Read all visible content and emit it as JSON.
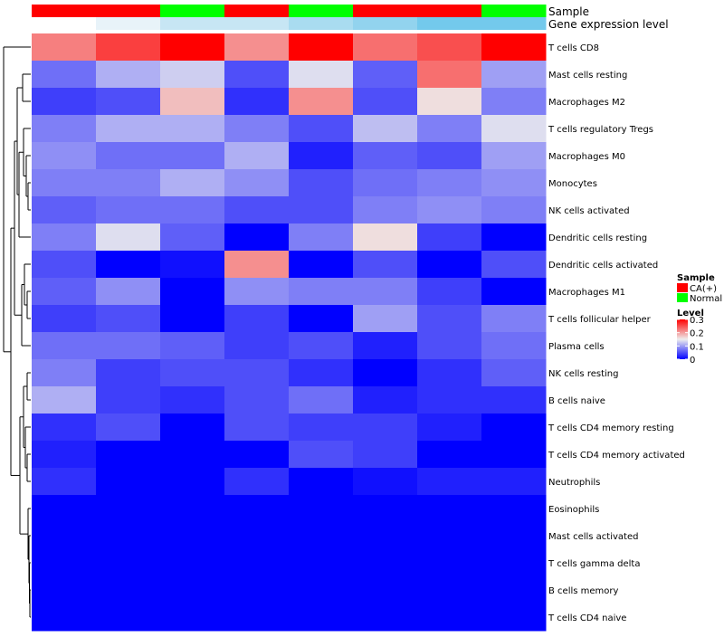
{
  "chart_data": {
    "type": "heatmap",
    "annotation_tracks": [
      "Sample",
      "Gene expression level"
    ],
    "sample_groups": [
      "CA(+)",
      "CA(+)",
      "Normal",
      "CA(+)",
      "Normal",
      "CA(+)",
      "CA(+)",
      "Normal"
    ],
    "expression_level_colors": [
      "#ffffff",
      "#e8f3f9",
      "#c7e6f4",
      "#c7e6f4",
      "#a9dcf0",
      "#92d3ee",
      "#73c9ec",
      "#73c9ec"
    ],
    "rows": [
      "T cells CD8",
      "Mast cells resting",
      "Macrophages M2",
      "T cells regulatory  Tregs",
      "Macrophages M0",
      "Monocytes",
      "NK cells activated",
      "Dendritic cells resting",
      "Dendritic cells activated",
      "Macrophages M1",
      "T cells follicular helper",
      "Plasma cells",
      "NK cells resting",
      "B cells naive",
      "T cells CD4 memory resting",
      "T cells CD4 memory activated",
      "Neutrophils",
      "Eosinophils",
      "Mast cells activated",
      "T cells gamma delta",
      "B cells memory",
      "T cells CD4 naive"
    ],
    "values": [
      [
        0.22,
        0.26,
        0.3,
        0.21,
        0.3,
        0.23,
        0.25,
        0.3
      ],
      [
        0.07,
        0.11,
        0.13,
        0.05,
        0.14,
        0.06,
        0.23,
        0.1
      ],
      [
        0.04,
        0.05,
        0.18,
        0.03,
        0.21,
        0.05,
        0.16,
        0.08
      ],
      [
        0.08,
        0.11,
        0.11,
        0.08,
        0.05,
        0.12,
        0.08,
        0.14
      ],
      [
        0.09,
        0.07,
        0.07,
        0.11,
        0.02,
        0.06,
        0.05,
        0.1
      ],
      [
        0.08,
        0.08,
        0.11,
        0.09,
        0.05,
        0.07,
        0.08,
        0.09
      ],
      [
        0.06,
        0.07,
        0.07,
        0.05,
        0.05,
        0.08,
        0.09,
        0.08
      ],
      [
        0.08,
        0.14,
        0.06,
        0.0,
        0.08,
        0.16,
        0.04,
        0.0
      ],
      [
        0.05,
        0.0,
        0.01,
        0.21,
        0.0,
        0.05,
        0.0,
        0.05
      ],
      [
        0.06,
        0.09,
        0.0,
        0.09,
        0.08,
        0.08,
        0.04,
        0.0
      ],
      [
        0.04,
        0.05,
        0.0,
        0.04,
        0.0,
        0.1,
        0.05,
        0.08
      ],
      [
        0.07,
        0.07,
        0.06,
        0.04,
        0.05,
        0.02,
        0.05,
        0.07
      ],
      [
        0.08,
        0.04,
        0.05,
        0.05,
        0.03,
        0.0,
        0.03,
        0.06
      ],
      [
        0.11,
        0.04,
        0.03,
        0.05,
        0.07,
        0.02,
        0.03,
        0.03
      ],
      [
        0.03,
        0.05,
        0.0,
        0.05,
        0.04,
        0.04,
        0.02,
        0.0
      ],
      [
        0.02,
        0.0,
        0.0,
        0.0,
        0.05,
        0.04,
        0.0,
        0.0
      ],
      [
        0.03,
        0.0,
        0.0,
        0.03,
        0.0,
        0.01,
        0.02,
        0.02
      ],
      [
        0.0,
        0.0,
        0.0,
        0.0,
        0.0,
        0.0,
        0.0,
        0.0
      ],
      [
        0.0,
        0.0,
        0.0,
        0.0,
        0.0,
        0.0,
        0.0,
        0.0
      ],
      [
        0.0,
        0.0,
        0.0,
        0.0,
        0.0,
        0.0,
        0.0,
        0.0
      ],
      [
        0.0,
        0.0,
        0.0,
        0.0,
        0.0,
        0.0,
        0.0,
        0.0
      ],
      [
        0.0,
        0.0,
        0.0,
        0.0,
        0.0,
        0.0,
        0.0,
        0.0
      ]
    ],
    "color_scale": {
      "min": 0,
      "mid": 0.15,
      "max": 0.3,
      "low_color": "#0000ff",
      "mid_color": "#eeeeee",
      "high_color": "#ff0000"
    },
    "legend": {
      "sample_title": "Sample",
      "sample_items": [
        {
          "label": "CA(+)",
          "color": "#ff0000"
        },
        {
          "label": "Normal",
          "color": "#00ff00"
        }
      ],
      "level_title": "Level",
      "level_ticks": [
        "0.3",
        "0.2",
        "0.1",
        "0"
      ],
      "level_tick_values": [
        0.3,
        0.2,
        0.1,
        0
      ]
    },
    "row_dendrogram": true
  }
}
